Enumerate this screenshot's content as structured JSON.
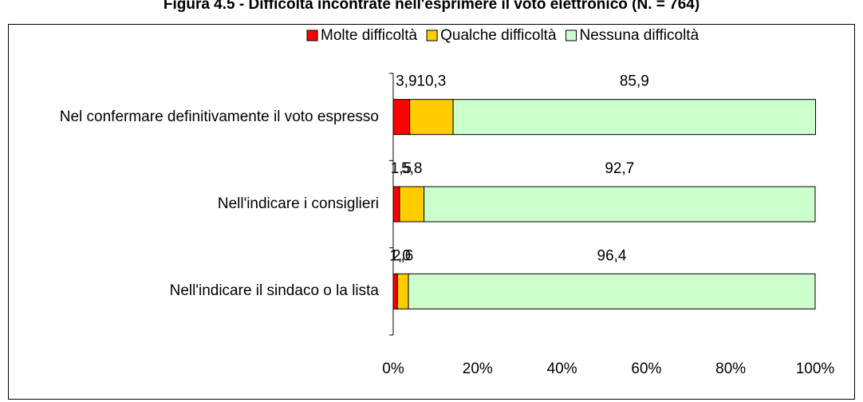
{
  "chart_data": {
    "type": "stacked-bar-horizontal",
    "title": "Figura 4.5 - Difficoltà incontrate nell'esprimere il voto elettronico (N. = 764)",
    "categories": [
      "Nel confermare definitivamente il voto espresso",
      "Nell'indicare i consiglieri",
      "Nell'indicare il sindaco o la lista"
    ],
    "series": [
      {
        "name": "Molte difficoltà",
        "color": "#ff0000",
        "values": [
          3.9,
          1.5,
          1.0
        ],
        "value_labels": [
          "3,9",
          "1,5",
          "1,0"
        ]
      },
      {
        "name": "Qualche difficoltà",
        "color": "#ffcc00",
        "values": [
          10.3,
          5.8,
          2.6
        ],
        "value_labels": [
          "10,3",
          "5,8",
          "2,6"
        ]
      },
      {
        "name": "Nessuna difficoltà",
        "color": "#ccffcc",
        "values": [
          85.9,
          92.7,
          96.4
        ],
        "value_labels": [
          "85,9",
          "92,7",
          "96,4"
        ]
      }
    ],
    "xlim": [
      0,
      100
    ],
    "xticks": [
      {
        "value": 0,
        "label": "0%"
      },
      {
        "value": 20,
        "label": "20%"
      },
      {
        "value": 40,
        "label": "40%"
      },
      {
        "value": 60,
        "label": "60%"
      },
      {
        "value": 80,
        "label": "80%"
      },
      {
        "value": 100,
        "label": "100%"
      }
    ],
    "legend": "top"
  }
}
